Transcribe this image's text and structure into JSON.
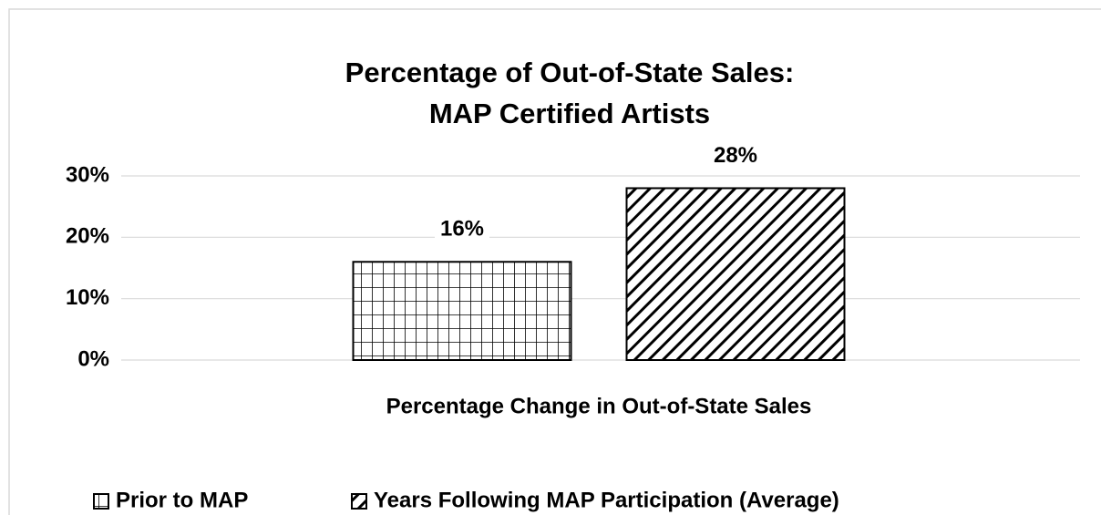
{
  "chart_data": {
    "type": "bar",
    "title": [
      "Percentage of Out-of-State Sales:",
      "MAP Certified Artists"
    ],
    "categories": [
      "Percentage Change in Out-of-State Sales"
    ],
    "series": [
      {
        "name": "Prior to MAP",
        "color": "#000000",
        "pattern": "grid",
        "values": [
          16
        ],
        "value_labels": [
          "16%"
        ]
      },
      {
        "name": "Years Following MAP Participation (Average)",
        "color": "#000000",
        "pattern": "diagonal",
        "values": [
          28
        ],
        "value_labels": [
          "28%"
        ]
      }
    ],
    "ylim": [
      0,
      30
    ],
    "yticks": [
      {
        "value": 0,
        "label": "0%"
      },
      {
        "value": 10,
        "label": "10%"
      },
      {
        "value": 20,
        "label": "20%"
      },
      {
        "value": 30,
        "label": "30%"
      }
    ],
    "grid": true,
    "legend": "bottom"
  }
}
